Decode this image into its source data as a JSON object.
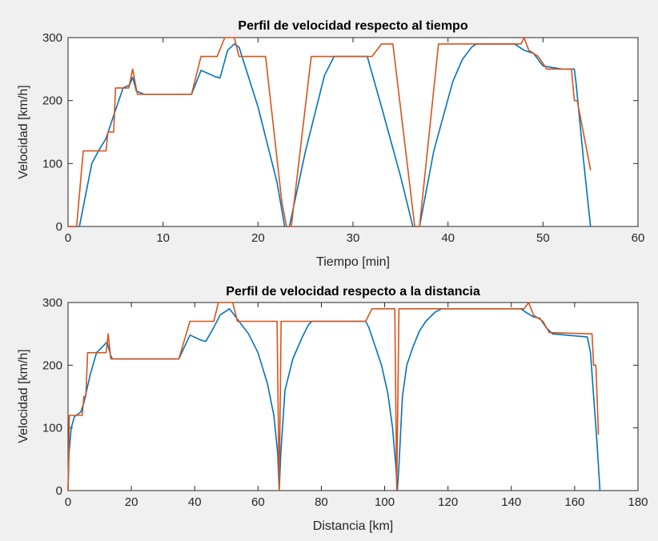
{
  "chart_data": [
    {
      "type": "line",
      "title": "Perfil de velocidad respecto al tiempo",
      "xlabel": "Tiempo [min]",
      "ylabel": "Velocidad [km/h]",
      "xlim": [
        0,
        60
      ],
      "ylim": [
        0,
        300
      ],
      "xticks": [
        0,
        10,
        20,
        30,
        40,
        50,
        60
      ],
      "yticks": [
        0,
        100,
        200,
        300
      ],
      "grid": false,
      "legend": "none",
      "series": [
        {
          "color": "#0072BD",
          "points": [
            [
              0,
              0
            ],
            [
              1.2,
              0
            ],
            [
              2.5,
              100
            ],
            [
              3.2,
              120
            ],
            [
              4,
              140
            ],
            [
              5,
              185
            ],
            [
              5.8,
              220
            ],
            [
              6.5,
              225
            ],
            [
              6.8,
              237
            ],
            [
              7.2,
              215
            ],
            [
              8,
              210
            ],
            [
              13,
              210
            ],
            [
              14,
              248
            ],
            [
              15.5,
              238
            ],
            [
              16,
              236
            ],
            [
              16.8,
              280
            ],
            [
              17.5,
              290
            ],
            [
              18,
              285
            ],
            [
              20,
              190
            ],
            [
              22,
              70
            ],
            [
              22.8,
              0
            ],
            [
              23.3,
              0
            ],
            [
              25,
              120
            ],
            [
              27,
              240
            ],
            [
              28,
              270
            ],
            [
              31.5,
              270
            ],
            [
              33,
              190
            ],
            [
              35,
              80
            ],
            [
              36.3,
              0
            ],
            [
              37,
              0
            ],
            [
              38.5,
              120
            ],
            [
              40.5,
              230
            ],
            [
              41.5,
              265
            ],
            [
              42.5,
              285
            ],
            [
              43,
              290
            ],
            [
              44,
              290
            ],
            [
              47,
              290
            ],
            [
              48,
              280
            ],
            [
              49,
              275
            ],
            [
              50,
              255
            ],
            [
              52,
              250
            ],
            [
              53.3,
              250
            ],
            [
              53.5,
              225
            ],
            [
              54.3,
              100
            ],
            [
              55,
              0
            ]
          ]
        },
        {
          "color": "#D95319",
          "points": [
            [
              0,
              0
            ],
            [
              0.9,
              0
            ],
            [
              1.6,
              120
            ],
            [
              4,
              120
            ],
            [
              4.2,
              150
            ],
            [
              4.8,
              150
            ],
            [
              5,
              220
            ],
            [
              6.4,
              220
            ],
            [
              6.8,
              250
            ],
            [
              7.3,
              210
            ],
            [
              13,
              210
            ],
            [
              14,
              270
            ],
            [
              15.7,
              270
            ],
            [
              16.5,
              300
            ],
            [
              17.5,
              300
            ],
            [
              18,
              270
            ],
            [
              20.8,
              270
            ],
            [
              22.5,
              40
            ],
            [
              23,
              0
            ],
            [
              23.5,
              0
            ],
            [
              25.6,
              270
            ],
            [
              32,
              270
            ],
            [
              33,
              290
            ],
            [
              34.2,
              290
            ],
            [
              36.5,
              0
            ],
            [
              37,
              0
            ],
            [
              39,
              290
            ],
            [
              47.7,
              290
            ],
            [
              48,
              300
            ],
            [
              48.5,
              280
            ],
            [
              49.5,
              270
            ],
            [
              50.4,
              250
            ],
            [
              53,
              250
            ],
            [
              53.3,
              200
            ],
            [
              53.6,
              200
            ],
            [
              55,
              90
            ]
          ]
        }
      ]
    },
    {
      "type": "line",
      "title": "Perfil de velocidad respecto a la distancia",
      "xlabel": "Distancia [km]",
      "ylabel": "Velocidad [km/h]",
      "xlim": [
        0,
        180
      ],
      "ylim": [
        0,
        300
      ],
      "xticks": [
        0,
        20,
        40,
        60,
        80,
        100,
        120,
        140,
        160,
        180
      ],
      "yticks": [
        0,
        100,
        200,
        300
      ],
      "grid": false,
      "legend": "none",
      "series": [
        {
          "color": "#0072BD",
          "points": [
            [
              0,
              0
            ],
            [
              0.3,
              60
            ],
            [
              1,
              100
            ],
            [
              2,
              118
            ],
            [
              4,
              125
            ],
            [
              5,
              140
            ],
            [
              7,
              185
            ],
            [
              9,
              220
            ],
            [
              11,
              230
            ],
            [
              12.3,
              237
            ],
            [
              13.5,
              215
            ],
            [
              14,
              210
            ],
            [
              35,
              210
            ],
            [
              38.5,
              248
            ],
            [
              42,
              240
            ],
            [
              43.5,
              238
            ],
            [
              46,
              260
            ],
            [
              48,
              280
            ],
            [
              51,
              290
            ],
            [
              54,
              270
            ],
            [
              57,
              250
            ],
            [
              60,
              220
            ],
            [
              63,
              170
            ],
            [
              65,
              120
            ],
            [
              66.2,
              60
            ],
            [
              66.7,
              0
            ],
            [
              67.2,
              60
            ],
            [
              68.5,
              160
            ],
            [
              71,
              210
            ],
            [
              74,
              245
            ],
            [
              76,
              265
            ],
            [
              77,
              270
            ],
            [
              94,
              270
            ],
            [
              95,
              260
            ],
            [
              97,
              230
            ],
            [
              99,
              200
            ],
            [
              101,
              155
            ],
            [
              102.5,
              100
            ],
            [
              103.5,
              40
            ],
            [
              104,
              0
            ],
            [
              104.5,
              40
            ],
            [
              105.6,
              150
            ],
            [
              107,
              200
            ],
            [
              109,
              230
            ],
            [
              111,
              255
            ],
            [
              113,
              270
            ],
            [
              116,
              285
            ],
            [
              118,
              290
            ],
            [
              143,
              290
            ],
            [
              145,
              283
            ],
            [
              147,
              277
            ],
            [
              149,
              275
            ],
            [
              151,
              260
            ],
            [
              153,
              250
            ],
            [
              164,
              245
            ],
            [
              165,
              220
            ],
            [
              166,
              150
            ],
            [
              167,
              80
            ],
            [
              168,
              0
            ]
          ]
        },
        {
          "color": "#D95319",
          "points": [
            [
              0,
              0
            ],
            [
              0.4,
              120
            ],
            [
              4.5,
              120
            ],
            [
              5,
              150
            ],
            [
              5.6,
              150
            ],
            [
              6.2,
              220
            ],
            [
              12,
              220
            ],
            [
              12.7,
              250
            ],
            [
              13.5,
              210
            ],
            [
              35,
              210
            ],
            [
              38.5,
              270
            ],
            [
              46,
              270
            ],
            [
              47.5,
              300
            ],
            [
              52,
              300
            ],
            [
              53.5,
              270
            ],
            [
              66,
              270
            ],
            [
              66.7,
              0
            ],
            [
              67.3,
              270
            ],
            [
              94,
              270
            ],
            [
              96,
              290
            ],
            [
              103.2,
              290
            ],
            [
              103.8,
              0
            ],
            [
              104.5,
              290
            ],
            [
              144,
              290
            ],
            [
              145.5,
              300
            ],
            [
              147,
              280
            ],
            [
              150,
              270
            ],
            [
              152,
              252
            ],
            [
              165.5,
              250
            ],
            [
              166,
              200
            ],
            [
              166.7,
              200
            ],
            [
              167.5,
              90
            ]
          ]
        }
      ]
    }
  ]
}
